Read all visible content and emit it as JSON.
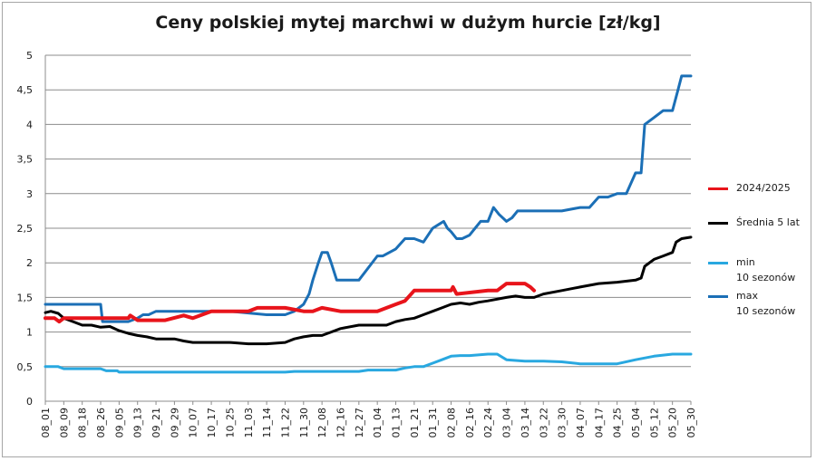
{
  "chart_data": {
    "type": "line",
    "title": "Ceny polskiej mytej marchwi w dużym hurcie [zł/kg]",
    "xlabel": "",
    "ylabel": "",
    "ylim": [
      0,
      5
    ],
    "yticks": [
      "0",
      "0,5",
      "1",
      "1,5",
      "2",
      "2,5",
      "3",
      "3,5",
      "4",
      "4,5",
      "5"
    ],
    "grid": true,
    "legend": "right",
    "categories": [
      "08_01",
      "08_09",
      "08_18",
      "08_26",
      "09_05",
      "09_13",
      "09_21",
      "09_29",
      "10_07",
      "10_17",
      "10_25",
      "11_03",
      "11_14",
      "11_22",
      "11_30",
      "12_08",
      "12_16",
      "12_27",
      "01_04",
      "01_13",
      "01_21",
      "01_31",
      "02_08",
      "02_16",
      "02_24",
      "03_04",
      "03_14",
      "03_22",
      "03_30",
      "04_07",
      "04_17",
      "04_25",
      "05_04",
      "05_12",
      "05_20",
      "05_30"
    ],
    "series": [
      {
        "name": "2024/2025",
        "color": "#e8141b",
        "width": 4,
        "x": [
          0,
          0.5,
          0.75,
          1,
          2,
          3,
          4.5,
          4.6,
          5,
          6.5,
          7.5,
          8,
          9,
          9.5,
          11,
          11.5,
          13,
          14,
          14.5,
          15,
          16,
          18,
          19,
          19.5,
          20,
          22,
          22.1,
          22.3,
          24,
          24.5,
          25,
          26,
          26.3,
          26.5
        ],
        "values": [
          1.2,
          1.2,
          1.15,
          1.2,
          1.2,
          1.2,
          1.2,
          1.24,
          1.17,
          1.17,
          1.24,
          1.2,
          1.3,
          1.3,
          1.3,
          1.35,
          1.35,
          1.3,
          1.3,
          1.35,
          1.3,
          1.3,
          1.4,
          1.45,
          1.6,
          1.6,
          1.65,
          1.55,
          1.6,
          1.6,
          1.7,
          1.7,
          1.65,
          1.6
        ]
      },
      {
        "name": "Średnia 5 lat",
        "color": "#000000",
        "width": 3,
        "x": [
          0,
          0.3,
          0.7,
          1,
          1.5,
          2,
          2.5,
          3,
          3.5,
          4,
          4.5,
          5,
          5.5,
          6,
          7,
          7.5,
          8,
          9,
          10,
          11,
          12,
          13,
          13.5,
          14,
          14.5,
          15,
          15.5,
          16,
          17,
          18,
          18.5,
          19,
          19.5,
          20,
          20.5,
          21,
          21.5,
          22,
          22.5,
          23,
          23.5,
          24,
          25,
          25.5,
          26,
          26.5,
          27,
          28,
          29,
          30,
          31,
          32,
          32.3,
          32.5,
          33,
          33.5,
          34,
          34.2,
          34.5,
          35
        ],
        "values": [
          1.28,
          1.3,
          1.27,
          1.2,
          1.15,
          1.1,
          1.1,
          1.07,
          1.08,
          1.02,
          0.98,
          0.95,
          0.93,
          0.9,
          0.9,
          0.87,
          0.85,
          0.85,
          0.85,
          0.83,
          0.83,
          0.85,
          0.9,
          0.93,
          0.95,
          0.95,
          1.0,
          1.05,
          1.1,
          1.1,
          1.1,
          1.15,
          1.18,
          1.2,
          1.25,
          1.3,
          1.35,
          1.4,
          1.42,
          1.4,
          1.43,
          1.45,
          1.5,
          1.52,
          1.5,
          1.5,
          1.55,
          1.6,
          1.65,
          1.7,
          1.72,
          1.75,
          1.78,
          1.95,
          2.05,
          2.1,
          2.15,
          2.3,
          2.35,
          2.37
        ]
      },
      {
        "name": "min\n10 sezonów",
        "color": "#29a8e0",
        "width": 3,
        "x": [
          0,
          0.7,
          1,
          3,
          3.3,
          3.9,
          4,
          13,
          13.5,
          17,
          17.5,
          19,
          19.5,
          20,
          20.5,
          21,
          21.5,
          22,
          22.5,
          23,
          24,
          24.5,
          25,
          26,
          27,
          28,
          29,
          30,
          31,
          32,
          33,
          34,
          35
        ],
        "values": [
          0.5,
          0.5,
          0.47,
          0.47,
          0.44,
          0.44,
          0.42,
          0.42,
          0.43,
          0.43,
          0.45,
          0.45,
          0.48,
          0.5,
          0.5,
          0.55,
          0.6,
          0.65,
          0.66,
          0.66,
          0.68,
          0.68,
          0.6,
          0.58,
          0.58,
          0.57,
          0.54,
          0.54,
          0.54,
          0.6,
          0.65,
          0.68,
          0.68
        ]
      },
      {
        "name": "max\n10 sezonów",
        "color": "#1b6fb6",
        "width": 3,
        "x": [
          0,
          3,
          3.1,
          4.5,
          5,
          5.3,
          5.6,
          6,
          8,
          10,
          12,
          13,
          13.5,
          14,
          14.3,
          14.5,
          14.8,
          15,
          15.3,
          15.5,
          15.8,
          16,
          16.3,
          16.5,
          17,
          18,
          18.3,
          19,
          19.5,
          20,
          20.5,
          21,
          21.3,
          21.6,
          21.8,
          22,
          22.3,
          22.6,
          23,
          23.3,
          23.6,
          24,
          24.3,
          24.6,
          25,
          25.3,
          25.6,
          26,
          26.5,
          27,
          28,
          29,
          29.5,
          30,
          30.5,
          31,
          31.5,
          32,
          32.3,
          32.5,
          33,
          33.5,
          34,
          34.3,
          34.5,
          35
        ],
        "values": [
          1.4,
          1.4,
          1.15,
          1.15,
          1.2,
          1.25,
          1.25,
          1.3,
          1.3,
          1.3,
          1.25,
          1.25,
          1.3,
          1.4,
          1.55,
          1.75,
          2.0,
          2.15,
          2.15,
          2.0,
          1.75,
          1.75,
          1.75,
          1.75,
          1.75,
          2.1,
          2.1,
          2.2,
          2.35,
          2.35,
          2.3,
          2.5,
          2.55,
          2.6,
          2.5,
          2.45,
          2.35,
          2.35,
          2.4,
          2.5,
          2.6,
          2.6,
          2.8,
          2.7,
          2.6,
          2.65,
          2.75,
          2.75,
          2.75,
          2.75,
          2.75,
          2.8,
          2.8,
          2.95,
          2.95,
          3.0,
          3.0,
          3.3,
          3.3,
          4.0,
          4.1,
          4.2,
          4.2,
          4.5,
          4.7,
          4.7
        ]
      }
    ]
  }
}
